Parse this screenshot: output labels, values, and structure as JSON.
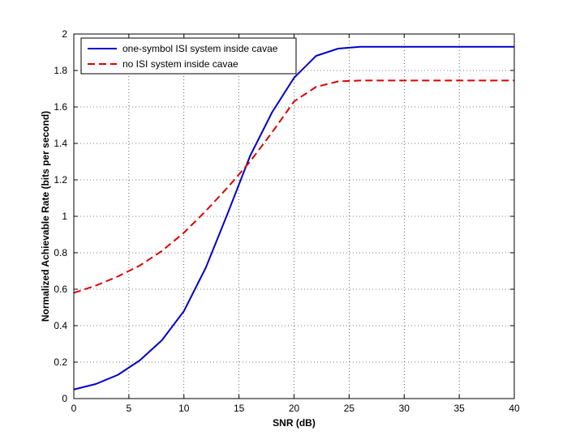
{
  "chart_data": {
    "type": "line",
    "title": "",
    "xlabel": "SNR (dB)",
    "ylabel": "Normalized Achievable Rate (bits per second)",
    "xlim": [
      0,
      40
    ],
    "ylim": [
      0,
      2
    ],
    "xticks": [
      0,
      5,
      10,
      15,
      20,
      25,
      30,
      35,
      40
    ],
    "yticks": [
      0,
      0.2,
      0.4,
      0.6,
      0.8,
      1,
      1.2,
      1.4,
      1.6,
      1.8,
      2
    ],
    "grid": "dotted",
    "legend_position": "top-left",
    "series": [
      {
        "name": "one-symbol ISI system inside cavae",
        "color": "#0000cc",
        "style": "solid",
        "x": [
          0,
          2,
          4,
          6,
          8,
          10,
          12,
          14,
          16,
          18,
          20,
          22,
          24,
          26,
          28,
          30,
          32,
          34,
          36,
          38,
          40
        ],
        "y": [
          0.05,
          0.08,
          0.13,
          0.21,
          0.32,
          0.48,
          0.72,
          1.02,
          1.33,
          1.57,
          1.76,
          1.88,
          1.92,
          1.93,
          1.93,
          1.93,
          1.93,
          1.93,
          1.93,
          1.93,
          1.93
        ]
      },
      {
        "name": "no ISI system inside cavae",
        "color": "#dd0000",
        "style": "dashed",
        "x": [
          0,
          2,
          4,
          6,
          8,
          10,
          12,
          14,
          16,
          18,
          20,
          22,
          24,
          26,
          28,
          30,
          32,
          34,
          36,
          38,
          40
        ],
        "y": [
          0.58,
          0.62,
          0.67,
          0.73,
          0.81,
          0.91,
          1.03,
          1.16,
          1.3,
          1.46,
          1.63,
          1.71,
          1.74,
          1.745,
          1.745,
          1.745,
          1.745,
          1.745,
          1.745,
          1.745,
          1.745
        ]
      }
    ]
  }
}
